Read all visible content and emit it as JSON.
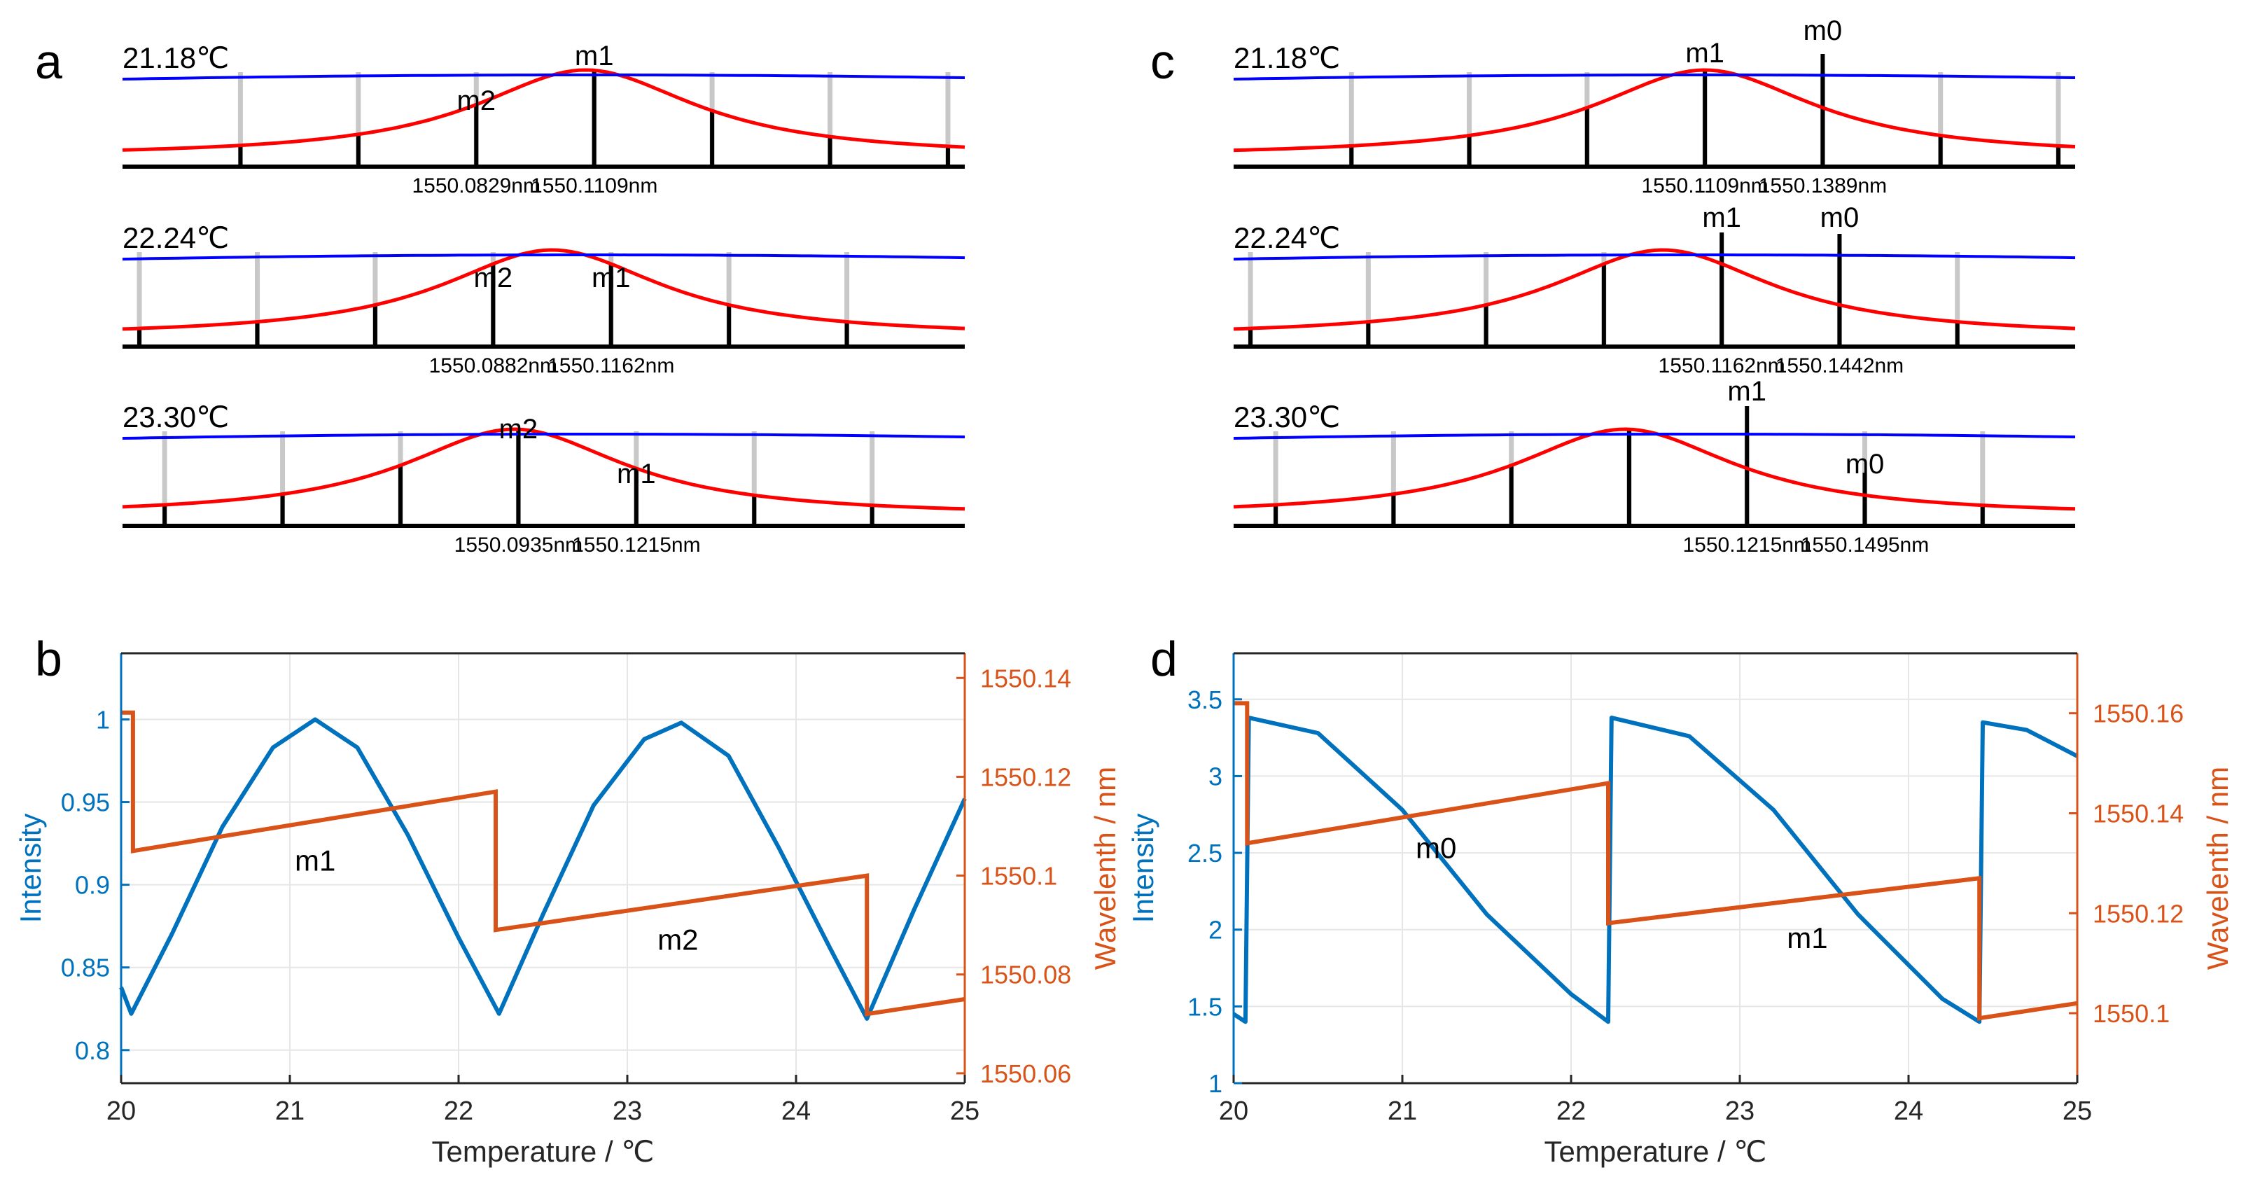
{
  "colors": {
    "envelope": "#ff0000",
    "filter": "#0000ff",
    "mode_active": "#000000",
    "mode_inactive": "#c8c8c8",
    "intensity": "#0072bd",
    "wavelength": "#d95319",
    "grid": "#e6e6e6"
  },
  "chart_data": [
    {
      "panel": "a",
      "type": "line",
      "description_units": "normalized spectrum snapshots",
      "rows": [
        {
          "temperature": "21.18℃",
          "mode_a": "m2",
          "mode_b": "m1",
          "wl_a": "1550.0829nm",
          "wl_b": "1550.1109nm",
          "peak_x": 0.55,
          "envelope_width": 0.16,
          "filter_slope": 0.02,
          "filter_peak": 0.55,
          "gray_marks": [
            0.14,
            0.28,
            0.42,
            0.56,
            0.7,
            0.84,
            0.98
          ],
          "black_marks": [
            0.14,
            0.28,
            0.42,
            0.56,
            0.7,
            0.84,
            0.98
          ],
          "label_a_at": 0.42,
          "label_b_at": 0.56
        },
        {
          "temperature": "22.24℃",
          "mode_a": "m2",
          "mode_b": "m1",
          "wl_a": "1550.0882nm",
          "wl_b": "1550.1162nm",
          "peak_x": 0.51,
          "envelope_width": 0.16,
          "filter_slope": 0.02,
          "filter_peak": 0.55,
          "gray_marks": [
            0.02,
            0.16,
            0.3,
            0.44,
            0.58,
            0.72,
            0.86
          ],
          "black_marks": [
            0.02,
            0.16,
            0.3,
            0.44,
            0.58,
            0.72,
            0.86
          ],
          "label_a_at": 0.44,
          "label_b_at": 0.58
        },
        {
          "temperature": "23.30℃",
          "mode_a": "m2",
          "mode_b": "m1",
          "wl_a": "1550.0935nm",
          "wl_b": "1550.1215nm",
          "peak_x": 0.465,
          "envelope_width": 0.16,
          "filter_slope": 0.02,
          "filter_peak": 0.55,
          "gray_marks": [
            0.05,
            0.19,
            0.33,
            0.47,
            0.61,
            0.75,
            0.89
          ],
          "black_marks": [
            0.05,
            0.19,
            0.33,
            0.47,
            0.61,
            0.75,
            0.89
          ],
          "label_a_at": 0.47,
          "label_b_at": 0.61
        }
      ]
    },
    {
      "panel": "c",
      "type": "line",
      "description_units": "normalized spectrum snapshots",
      "rows": [
        {
          "temperature": "21.18℃",
          "mode_a": "m1",
          "mode_b": "m0",
          "wl_a": "1550.1109nm",
          "wl_b": "1550.1389nm",
          "peak_x": 0.56,
          "envelope_width": 0.16,
          "filter_slope": 0.02,
          "filter_peak": 0.55,
          "gray_marks": [
            0.14,
            0.28,
            0.42,
            0.56,
            0.7,
            0.84,
            0.98
          ],
          "black_marks": [
            0.14,
            0.28,
            0.42,
            0.56,
            0.7,
            0.84,
            0.98
          ],
          "label_a_at": 0.56,
          "label_b_at": 0.7
        },
        {
          "temperature": "22.24℃",
          "mode_a": "m1",
          "mode_b": "m0",
          "wl_a": "1550.1162nm",
          "wl_b": "1550.1442nm",
          "peak_x": 0.51,
          "envelope_width": 0.16,
          "filter_slope": 0.02,
          "filter_peak": 0.55,
          "gray_marks": [
            0.02,
            0.16,
            0.3,
            0.44,
            0.58,
            0.72,
            0.86
          ],
          "black_marks": [
            0.02,
            0.16,
            0.3,
            0.44,
            0.58,
            0.72,
            0.86
          ],
          "label_a_at": 0.58,
          "label_b_at": 0.72
        },
        {
          "temperature": "23.30℃",
          "mode_a": "m1",
          "mode_b": "m0",
          "wl_a": "1550.1215nm",
          "wl_b": "1550.1495nm",
          "peak_x": 0.465,
          "envelope_width": 0.16,
          "filter_slope": 0.02,
          "filter_peak": 0.55,
          "gray_marks": [
            0.05,
            0.19,
            0.33,
            0.47,
            0.61,
            0.75,
            0.89
          ],
          "black_marks": [
            0.05,
            0.19,
            0.33,
            0.47,
            0.61,
            0.75,
            0.89
          ],
          "label_a_at": 0.61,
          "label_b_at": 0.75
        }
      ]
    },
    {
      "panel": "b",
      "type": "line",
      "xlabel": "Temperature / ℃",
      "ylabel_left": "Intensity",
      "ylabel_right": "Wavelenth / nm",
      "xlim": [
        20,
        25
      ],
      "ylim_left": [
        0.78,
        1.04
      ],
      "ylim_right": [
        1550.058,
        1550.145
      ],
      "xticks": [
        20,
        21,
        22,
        23,
        24,
        25
      ],
      "yticks_left": [
        0.8,
        0.85,
        0.9,
        0.95,
        1
      ],
      "yticks_left_labels": [
        "0.8",
        "0.85",
        "0.9",
        "0.95",
        "1"
      ],
      "yticks_right": [
        1550.06,
        1550.08,
        1550.1,
        1550.12,
        1550.14
      ],
      "yticks_right_labels": [
        "1550.06",
        "1550.08",
        "1550.1",
        "1550.12",
        "1550.14"
      ],
      "grid": true,
      "intensity_series": {
        "name": "Intensity",
        "x": [
          20,
          20.06,
          20.3,
          20.6,
          20.9,
          21.15,
          21.4,
          21.7,
          22.0,
          22.24,
          22.5,
          22.8,
          23.1,
          23.32,
          23.6,
          23.9,
          24.2,
          24.42,
          24.7,
          25.0
        ],
        "y": [
          0.838,
          0.822,
          0.87,
          0.935,
          0.983,
          1.0,
          0.983,
          0.93,
          0.868,
          0.822,
          0.882,
          0.948,
          0.988,
          0.998,
          0.978,
          0.922,
          0.862,
          0.819,
          0.885,
          0.952
        ]
      },
      "wavelength_series": {
        "name": "Wavelength",
        "x": [
          20,
          20.07,
          20.07,
          22.22,
          22.22,
          24.42,
          24.42,
          25.0
        ],
        "y": [
          1550.133,
          1550.133,
          1550.105,
          1550.117,
          1550.089,
          1550.1,
          1550.072,
          1550.075
        ]
      },
      "annotations": [
        {
          "text": "m1",
          "x": 21.15,
          "y_right": 1550.101
        },
        {
          "text": "m2",
          "x": 23.3,
          "y_right": 1550.085
        }
      ]
    },
    {
      "panel": "d",
      "type": "line",
      "xlabel": "Temperature / ℃",
      "ylabel_left": "Intensity",
      "ylabel_right": "Wavelenth / nm",
      "xlim": [
        20,
        25
      ],
      "ylim_left": [
        1,
        3.8
      ],
      "ylim_right": [
        1550.086,
        1550.172
      ],
      "xticks": [
        20,
        21,
        22,
        23,
        24,
        25
      ],
      "yticks_left": [
        1,
        1.5,
        2,
        2.5,
        3,
        3.5
      ],
      "yticks_left_labels": [
        "1",
        "1.5",
        "2",
        "2.5",
        "3",
        "3.5"
      ],
      "yticks_right": [
        1550.1,
        1550.12,
        1550.14,
        1550.16
      ],
      "yticks_right_labels": [
        "1550.1",
        "1550.12",
        "1550.14",
        "1550.16"
      ],
      "grid": true,
      "intensity_series": {
        "name": "Intensity",
        "x": [
          20,
          20.07,
          20.09,
          20.5,
          21.0,
          21.5,
          22.0,
          22.22,
          22.24,
          22.7,
          23.2,
          23.7,
          24.2,
          24.42,
          24.44,
          24.7,
          25.0
        ],
        "y": [
          1.45,
          1.4,
          3.38,
          3.28,
          2.78,
          2.1,
          1.58,
          1.4,
          3.38,
          3.26,
          2.78,
          2.1,
          1.55,
          1.4,
          3.35,
          3.3,
          3.13
        ],
        "step_at": [
          20.08,
          22.23,
          24.43
        ]
      },
      "wavelength_series": {
        "name": "Wavelength",
        "x": [
          20,
          20.08,
          20.08,
          22.22,
          22.22,
          24.42,
          24.42,
          25.0
        ],
        "y": [
          1550.162,
          1550.162,
          1550.134,
          1550.146,
          1550.118,
          1550.127,
          1550.099,
          1550.102
        ]
      },
      "annotations": [
        {
          "text": "m0",
          "x": 21.2,
          "y_right": 1550.131
        },
        {
          "text": "m1",
          "x": 23.4,
          "y_right": 1550.113
        }
      ]
    }
  ],
  "panel_labels": {
    "a": "a",
    "b": "b",
    "c": "c",
    "d": "d"
  }
}
